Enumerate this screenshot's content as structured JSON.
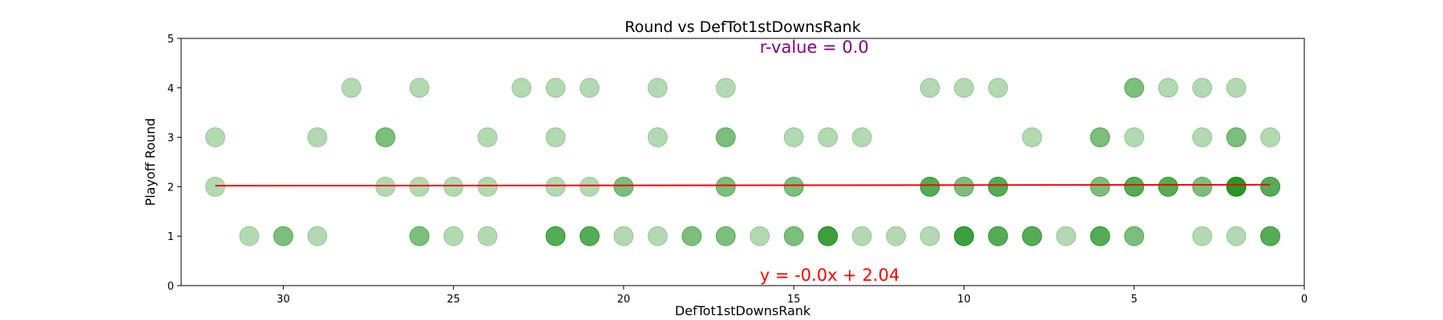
{
  "chart_data": {
    "type": "scatter",
    "title": "Round vs DefTot1stDownsRank",
    "xlabel": "DefTot1stDownsRank",
    "ylabel": "Playoff Round",
    "xlim": [
      33,
      0
    ],
    "ylim": [
      0,
      5
    ],
    "x_inverted": true,
    "xticks": [
      30,
      25,
      20,
      15,
      10,
      5,
      0
    ],
    "yticks": [
      0,
      1,
      2,
      3,
      4,
      5
    ],
    "grid": false,
    "point_color": "#008000",
    "point_alpha": 0.3,
    "line_color": "#ff0000",
    "annotation_color_r": "#800080",
    "annotation_color_eq": "#ff0000",
    "r_text": "r-value = 0.0",
    "eq_text": "y = -0.0x + 2.04",
    "fit_line": {
      "x": [
        32,
        1
      ],
      "y": [
        2.02,
        2.04
      ]
    },
    "points": [
      [
        28,
        4
      ],
      [
        26,
        4
      ],
      [
        23,
        4
      ],
      [
        22,
        4
      ],
      [
        21,
        4
      ],
      [
        19,
        4
      ],
      [
        17,
        4
      ],
      [
        11,
        4
      ],
      [
        10,
        4
      ],
      [
        9,
        4
      ],
      [
        5,
        4
      ],
      [
        5,
        4
      ],
      [
        4,
        4
      ],
      [
        3,
        4
      ],
      [
        2,
        4
      ],
      [
        32,
        3
      ],
      [
        29,
        3
      ],
      [
        27,
        3
      ],
      [
        27,
        3
      ],
      [
        24,
        3
      ],
      [
        22,
        3
      ],
      [
        19,
        3
      ],
      [
        17,
        3
      ],
      [
        17,
        3
      ],
      [
        15,
        3
      ],
      [
        14,
        3
      ],
      [
        13,
        3
      ],
      [
        8,
        3
      ],
      [
        6,
        3
      ],
      [
        6,
        3
      ],
      [
        5,
        3
      ],
      [
        3,
        3
      ],
      [
        2,
        3
      ],
      [
        2,
        3
      ],
      [
        1,
        3
      ],
      [
        32,
        2
      ],
      [
        27,
        2
      ],
      [
        26,
        2
      ],
      [
        25,
        2
      ],
      [
        24,
        2
      ],
      [
        22,
        2
      ],
      [
        21,
        2
      ],
      [
        20,
        2
      ],
      [
        20,
        2
      ],
      [
        17,
        2
      ],
      [
        17,
        2
      ],
      [
        15,
        2
      ],
      [
        15,
        2
      ],
      [
        11,
        2
      ],
      [
        11,
        2
      ],
      [
        11,
        2
      ],
      [
        10,
        2
      ],
      [
        10,
        2
      ],
      [
        9,
        2
      ],
      [
        9,
        2
      ],
      [
        9,
        2
      ],
      [
        6,
        2
      ],
      [
        6,
        2
      ],
      [
        5,
        2
      ],
      [
        5,
        2
      ],
      [
        5,
        2
      ],
      [
        4,
        2
      ],
      [
        4,
        2
      ],
      [
        4,
        2
      ],
      [
        3,
        2
      ],
      [
        3,
        2
      ],
      [
        2,
        2
      ],
      [
        2,
        2
      ],
      [
        2,
        2
      ],
      [
        2,
        2
      ],
      [
        2,
        2
      ],
      [
        1,
        2
      ],
      [
        1,
        2
      ],
      [
        1,
        2
      ],
      [
        31,
        1
      ],
      [
        30,
        1
      ],
      [
        30,
        1
      ],
      [
        29,
        1
      ],
      [
        26,
        1
      ],
      [
        26,
        1
      ],
      [
        25,
        1
      ],
      [
        24,
        1
      ],
      [
        22,
        1
      ],
      [
        22,
        1
      ],
      [
        22,
        1
      ],
      [
        21,
        1
      ],
      [
        21,
        1
      ],
      [
        21,
        1
      ],
      [
        20,
        1
      ],
      [
        19,
        1
      ],
      [
        18,
        1
      ],
      [
        18,
        1
      ],
      [
        17,
        1
      ],
      [
        17,
        1
      ],
      [
        16,
        1
      ],
      [
        15,
        1
      ],
      [
        15,
        1
      ],
      [
        14,
        1
      ],
      [
        14,
        1
      ],
      [
        14,
        1
      ],
      [
        14,
        1
      ],
      [
        13,
        1
      ],
      [
        12,
        1
      ],
      [
        11,
        1
      ],
      [
        10,
        1
      ],
      [
        10,
        1
      ],
      [
        10,
        1
      ],
      [
        10,
        1
      ],
      [
        9,
        1
      ],
      [
        9,
        1
      ],
      [
        9,
        1
      ],
      [
        8,
        1
      ],
      [
        8,
        1
      ],
      [
        8,
        1
      ],
      [
        7,
        1
      ],
      [
        6,
        1
      ],
      [
        6,
        1
      ],
      [
        6,
        1
      ],
      [
        5,
        1
      ],
      [
        5,
        1
      ],
      [
        3,
        1
      ],
      [
        2,
        1
      ],
      [
        1,
        1
      ],
      [
        1,
        1
      ],
      [
        1,
        1
      ]
    ]
  }
}
